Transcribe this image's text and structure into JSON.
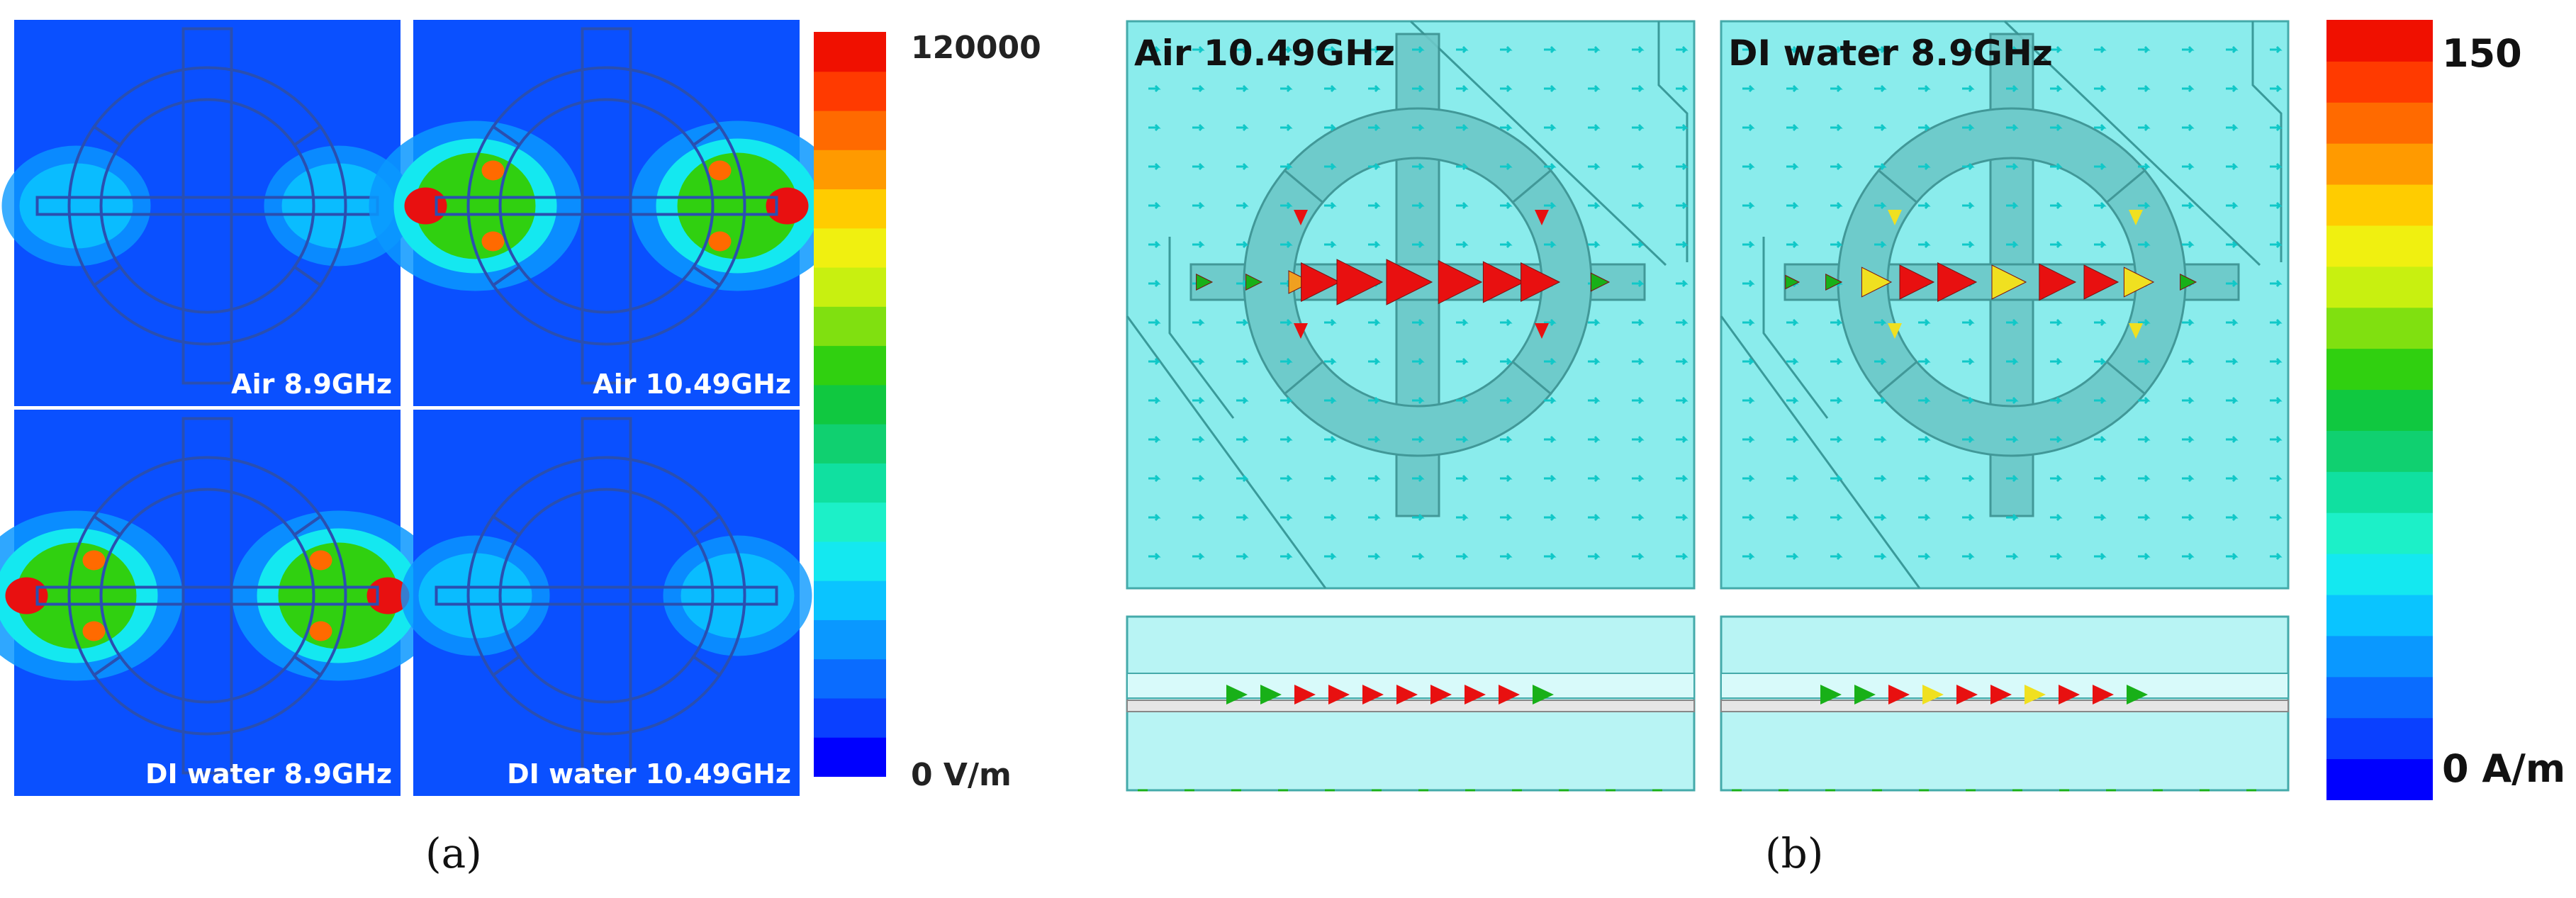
{
  "panel_a": {
    "subplots": [
      {
        "label": "Air 8.9GHz",
        "field_strength": "low"
      },
      {
        "label": "Air 10.49GHz",
        "field_strength": "high"
      },
      {
        "label": "DI water 8.9GHz",
        "field_strength": "high"
      },
      {
        "label": "DI water 10.49GHz",
        "field_strength": "low"
      }
    ],
    "colorbar": {
      "max_label": "120000",
      "min_label": "0 V/m"
    },
    "caption": "(a)"
  },
  "panel_b": {
    "subplots": [
      {
        "label": "Air 10.49GHz"
      },
      {
        "label": "DI water 8.9GHz"
      }
    ],
    "colorbar": {
      "max_label": "150",
      "min_label": "0 A/m"
    },
    "caption": "(b)"
  },
  "colors": {
    "background_field": "#0a50ff",
    "substrate": "#8aecec",
    "arrow_high": "#e81010",
    "arrow_mid": "#f0e020",
    "arrow_low": "#18b018",
    "arrow_tiny": "#10c8c8",
    "colorbar": [
      "#0000ff",
      "#0a40ff",
      "#0a6cff",
      "#0a98ff",
      "#0ac4ff",
      "#14e8f0",
      "#1cf0c8",
      "#10e0a0",
      "#10d070",
      "#10c840",
      "#30d010",
      "#80e010",
      "#c8f010",
      "#f0f010",
      "#ffcc00",
      "#ff9a00",
      "#ff6a00",
      "#ff3a00",
      "#f01000"
    ]
  }
}
